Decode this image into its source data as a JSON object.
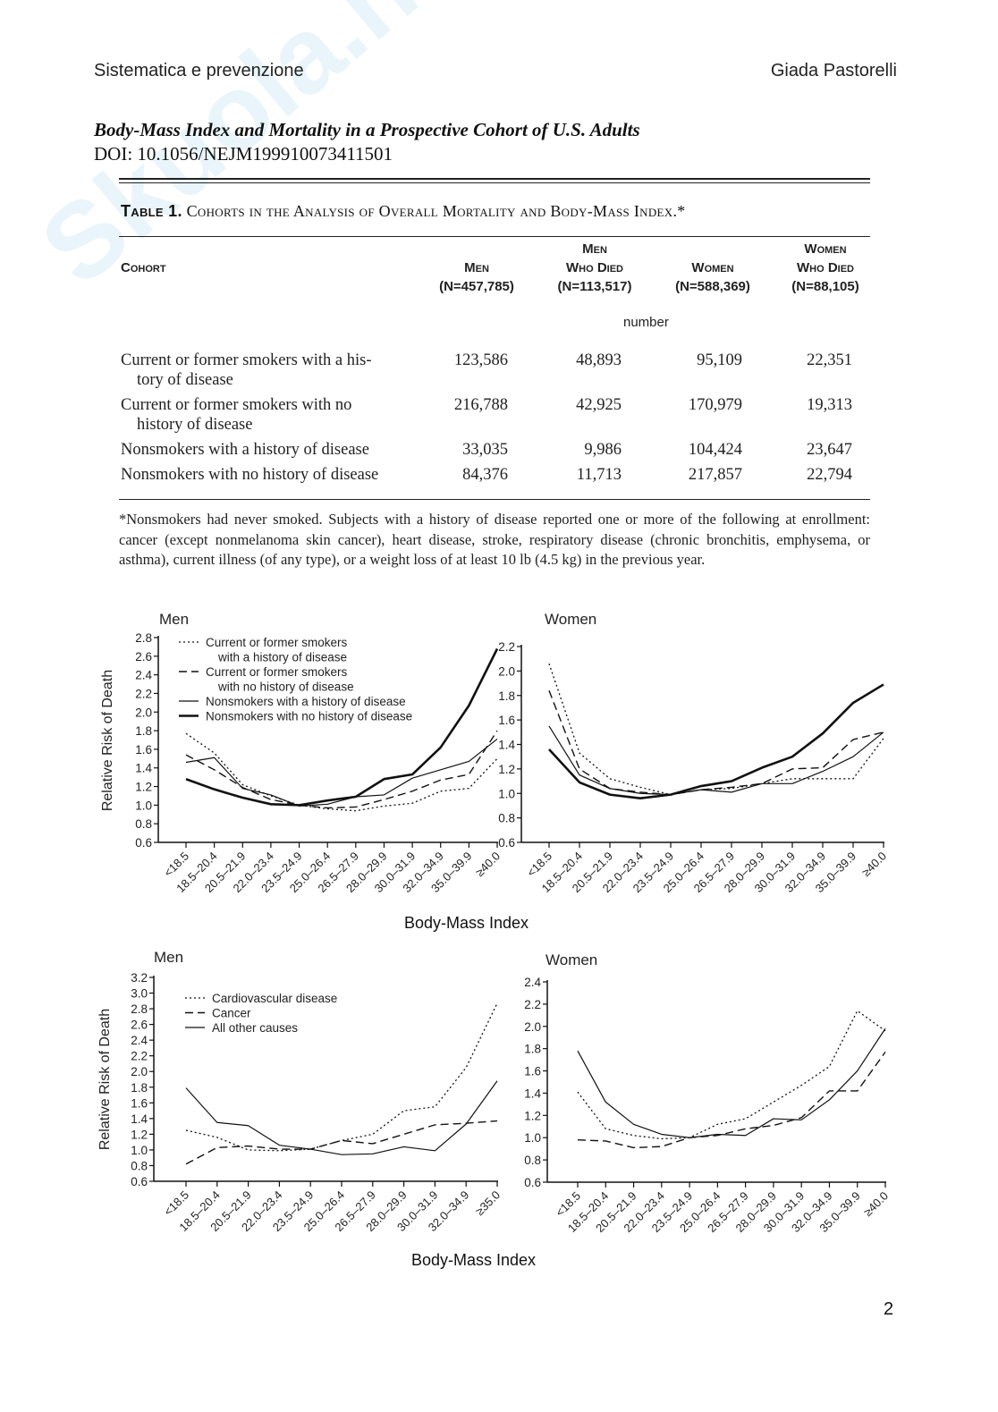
{
  "header": {
    "left": "Sistematica e prevenzione",
    "right": "Giada Pastorelli"
  },
  "watermark": "Skuola.net",
  "article": {
    "title": "Body-Mass Index and Mortality in a Prospective Cohort of U.S. Adults",
    "doi": "DOI: 10.1056/NEJM199910073411501"
  },
  "table": {
    "label": "Table 1.",
    "title": "Cohorts in the Analysis of Overall Mortality and Body-Mass Index.*",
    "columns": [
      {
        "l1": "",
        "l2": "Cohort",
        "l3": ""
      },
      {
        "l1": "",
        "l2": "Men",
        "l3": "(N=457,785)"
      },
      {
        "l1": "Men",
        "l2": "Who Died",
        "l3": "(N=113,517)"
      },
      {
        "l1": "",
        "l2": "Women",
        "l3": "(N=588,369)"
      },
      {
        "l1": "Women",
        "l2": "Who Died",
        "l3": "(N=88,105)"
      }
    ],
    "unit": "number",
    "rows": [
      {
        "l1": "Current or former smokers with a his-",
        "l2": "tory of disease",
        "v": [
          "123,586",
          "48,893",
          "95,109",
          "22,351"
        ]
      },
      {
        "l1": "Current or former smokers with no",
        "l2": "history of disease",
        "v": [
          "216,788",
          "42,925",
          "170,979",
          "19,313"
        ]
      },
      {
        "l1": "Nonsmokers with a history of disease",
        "l2": "",
        "v": [
          "33,035",
          "9,986",
          "104,424",
          "23,647"
        ]
      },
      {
        "l1": "Nonsmokers with no history of disease",
        "l2": "",
        "v": [
          "84,376",
          "11,713",
          "217,857",
          "22,794"
        ]
      }
    ],
    "footnote": "*Nonsmokers had never smoked. Subjects with a history of disease reported one or more of the following at enrollment: cancer (except nonmelanoma skin cancer), heart disease, stroke, respiratory disease (chronic bronchitis, emphysema, or asthma), current illness (of any type), or a weight loss of at least 10 lb (4.5 kg) in the previous year."
  },
  "figure_xlabel": "Body-Mass Index",
  "page_number": "2",
  "chart_data": [
    {
      "type": "line",
      "title": "Men",
      "ylabel": "Relative Risk of Death",
      "xlabel": "Body-Mass Index",
      "ylim": [
        0.6,
        2.8
      ],
      "yticks": [
        "0.6",
        "0.8",
        "1.0",
        "1.2",
        "1.4",
        "1.6",
        "1.8",
        "2.0",
        "2.2",
        "2.4",
        "2.6",
        "2.8"
      ],
      "categories": [
        "<18.5",
        "18.5–20.4",
        "20.5–21.9",
        "22.0–23.4",
        "23.5–24.9",
        "25.0–26.4",
        "26.5–27.9",
        "28.0–29.9",
        "30.0–31.9",
        "32.0–34.9",
        "35.0–39.9",
        "≥40.0"
      ],
      "legend": "top-left",
      "series": [
        {
          "name": "Current or former smokers with a history of disease",
          "legend": [
            "Current or former smokers",
            "with a history of disease"
          ],
          "style": "dotted",
          "values": [
            1.77,
            1.56,
            1.22,
            1.1,
            1.0,
            0.96,
            0.94,
            0.99,
            1.02,
            1.15,
            1.18,
            1.5
          ]
        },
        {
          "name": "Current or former smokers with no history of disease",
          "legend": [
            "Current or former smokers",
            "with no history of disease"
          ],
          "style": "dashed",
          "values": [
            1.54,
            1.38,
            1.19,
            1.06,
            1.0,
            0.97,
            0.98,
            1.06,
            1.15,
            1.27,
            1.33,
            1.8
          ]
        },
        {
          "name": "Nonsmokers with a history of disease",
          "legend": [
            "Nonsmokers with a history of disease"
          ],
          "style": "thin",
          "values": [
            1.46,
            1.51,
            1.18,
            1.11,
            0.99,
            1.01,
            1.09,
            1.11,
            1.29,
            1.38,
            1.47,
            1.71
          ]
        },
        {
          "name": "Nonsmokers with no history of disease",
          "legend": [
            "Nonsmokers with no history of disease"
          ],
          "style": "thick",
          "values": [
            1.28,
            1.17,
            1.08,
            1.01,
            1.0,
            1.05,
            1.09,
            1.28,
            1.33,
            1.62,
            2.07,
            2.68
          ]
        }
      ]
    },
    {
      "type": "line",
      "title": "Women",
      "ylabel": "",
      "xlabel": "Body-Mass Index",
      "ylim": [
        0.6,
        2.2
      ],
      "yticks": [
        "0.6",
        "0.8",
        "1.0",
        "1.2",
        "1.4",
        "1.6",
        "1.8",
        "2.0",
        "2.2"
      ],
      "categories": [
        "<18.5",
        "18.5–20.4",
        "20.5–21.9",
        "22.0–23.4",
        "23.5–24.9",
        "25.0–26.4",
        "26.5–27.9",
        "28.0–29.9",
        "30.0–31.9",
        "32.0–34.9",
        "35.0–39.9",
        "≥40.0"
      ],
      "series": [
        {
          "name": "Current or former smokers with a history of disease",
          "style": "dotted",
          "values": [
            2.06,
            1.33,
            1.12,
            1.05,
            0.99,
            1.03,
            1.04,
            1.08,
            1.12,
            1.12,
            1.12,
            1.45
          ]
        },
        {
          "name": "Current or former smokers with no history of disease",
          "style": "dashed",
          "values": [
            1.84,
            1.2,
            1.04,
            1.01,
            0.99,
            1.03,
            1.05,
            1.08,
            1.2,
            1.21,
            1.44,
            1.5
          ]
        },
        {
          "name": "Nonsmokers with a history of disease",
          "style": "thin",
          "values": [
            1.55,
            1.15,
            1.04,
            1.0,
            0.99,
            1.03,
            1.01,
            1.08,
            1.08,
            1.18,
            1.3,
            1.5
          ]
        },
        {
          "name": "Nonsmokers with no history of disease",
          "style": "thick",
          "values": [
            1.36,
            1.09,
            0.99,
            0.96,
            0.99,
            1.06,
            1.1,
            1.21,
            1.3,
            1.49,
            1.74,
            1.89
          ]
        }
      ]
    },
    {
      "type": "line",
      "title": "Men",
      "ylabel": "Relative Risk of Death",
      "xlabel": "Body-Mass Index",
      "ylim": [
        0.6,
        3.2
      ],
      "yticks": [
        "0.6",
        "0.8",
        "1.0",
        "1.2",
        "1.4",
        "1.6",
        "1.8",
        "2.0",
        "2.2",
        "2.4",
        "2.6",
        "2.8",
        "3.0",
        "3.2"
      ],
      "categories": [
        "<18.5",
        "18.5–20.4",
        "20.5–21.9",
        "22.0–23.4",
        "23.5–24.9",
        "25.0–26.4",
        "26.5–27.9",
        "28.0–29.9",
        "30.0–31.9",
        "32.0–34.9",
        "≥35.0"
      ],
      "legend": "top-left",
      "series": [
        {
          "name": "Cardiovascular disease",
          "legend": [
            "Cardiovascular disease"
          ],
          "style": "dotted",
          "values": [
            1.25,
            1.16,
            1.0,
            0.99,
            1.01,
            1.12,
            1.2,
            1.5,
            1.55,
            2.05,
            2.87
          ]
        },
        {
          "name": "Cancer",
          "legend": [
            "Cancer"
          ],
          "style": "dashed",
          "values": [
            0.82,
            1.03,
            1.05,
            1.01,
            1.01,
            1.12,
            1.08,
            1.2,
            1.32,
            1.34,
            1.37
          ]
        },
        {
          "name": "All other causes",
          "legend": [
            "All other causes"
          ],
          "style": "thin",
          "values": [
            1.79,
            1.35,
            1.31,
            1.06,
            1.01,
            0.94,
            0.95,
            1.04,
            0.99,
            1.33,
            1.88
          ]
        }
      ]
    },
    {
      "type": "line",
      "title": "Women",
      "ylabel": "",
      "xlabel": "Body-Mass Index",
      "ylim": [
        0.6,
        2.4
      ],
      "yticks": [
        "0.6",
        "0.8",
        "1.0",
        "1.2",
        "1.4",
        "1.6",
        "1.8",
        "2.0",
        "2.2",
        "2.4"
      ],
      "categories": [
        "<18.5",
        "18.5–20.4",
        "20.5–21.9",
        "22.0–23.4",
        "23.5–24.9",
        "25.0–26.4",
        "26.5–27.9",
        "28.0–29.9",
        "30.0–31.9",
        "32.0–34.9",
        "35.0–39.9",
        "≥40.0"
      ],
      "series": [
        {
          "name": "Cardiovascular disease",
          "style": "dotted",
          "values": [
            1.41,
            1.08,
            1.02,
            0.99,
            1.0,
            1.12,
            1.17,
            1.32,
            1.47,
            1.64,
            2.14,
            1.96
          ]
        },
        {
          "name": "Cancer",
          "style": "dashed",
          "values": [
            0.98,
            0.97,
            0.91,
            0.92,
            1.0,
            1.02,
            1.08,
            1.11,
            1.18,
            1.42,
            1.42,
            1.77
          ]
        },
        {
          "name": "All other causes",
          "style": "thin",
          "values": [
            1.78,
            1.32,
            1.12,
            1.03,
            1.0,
            1.03,
            1.02,
            1.17,
            1.16,
            1.34,
            1.6,
            1.98
          ]
        }
      ]
    }
  ]
}
